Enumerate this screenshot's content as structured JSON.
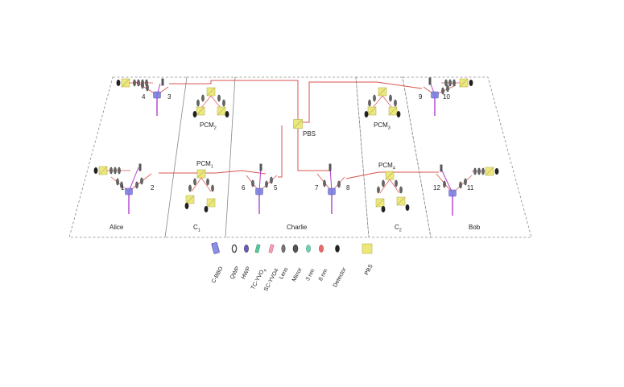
{
  "regions": {
    "alice": "Alice",
    "c1": "C",
    "c1_sub": "1",
    "charlie": "Charlie",
    "c2": "C",
    "c2_sub": "2",
    "bob": "Bob"
  },
  "pcm": [
    {
      "base": "PCM",
      "sub": "1"
    },
    {
      "base": "PCM",
      "sub": "2"
    },
    {
      "base": "PCM",
      "sub": "3"
    },
    {
      "base": "PCM",
      "sub": "4"
    }
  ],
  "pbs_label": "PBS",
  "source_numbers": [
    "1",
    "2",
    "3",
    "4",
    "5",
    "6",
    "7",
    "8",
    "9",
    "10",
    "11",
    "12"
  ],
  "legend": [
    {
      "label": "C-BBO",
      "icon": "crystal-icon",
      "color": "#8b8fe0"
    },
    {
      "label": "QWP",
      "icon": "qwp-icon",
      "color": "#444444"
    },
    {
      "label": "HWP",
      "icon": "hwp-icon",
      "color": "#6a5acd"
    },
    {
      "label": "TC-YVO",
      "sub": "4",
      "icon": "tc-yvo4-icon",
      "color": "#5cc7a0"
    },
    {
      "label": "SC-YVO4",
      "icon": "sc-yvo4-icon",
      "color": "#f2a0b0"
    },
    {
      "label": "Lens",
      "icon": "lens-icon",
      "color": "#777777"
    },
    {
      "label": "Mirror",
      "icon": "mirror-icon",
      "color": "#555555"
    },
    {
      "label": "3 nm",
      "icon": "filter-3nm-icon",
      "color": "#6fd0b0"
    },
    {
      "label": "8 nm",
      "icon": "filter-8nm-icon",
      "color": "#e86a6a"
    },
    {
      "label": "Detector",
      "icon": "detector-icon",
      "color": "#333333"
    },
    {
      "label": "PBS",
      "icon": "pbs-icon",
      "color": "#e8e27a"
    }
  ],
  "colors": {
    "beam": "#d9534f",
    "pump": "#b23fd1",
    "crystal": "#7d7fe0",
    "pbs": "#ece77a",
    "dash": "#888888"
  }
}
